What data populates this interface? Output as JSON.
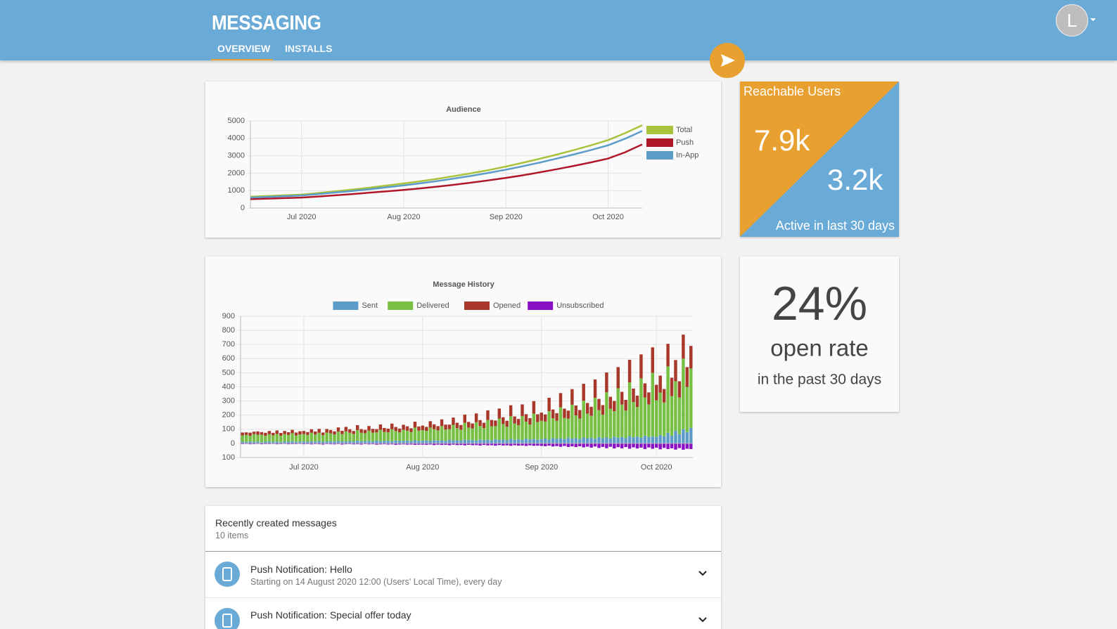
{
  "header": {
    "title": "MESSAGING",
    "tabs": [
      "OVERVIEW",
      "INSTALLS"
    ],
    "avatar": "L"
  },
  "chart_data": [
    {
      "type": "line",
      "title": "Audience",
      "categories": [
        null,
        null,
        null,
        "Jul 2020",
        null,
        null,
        null,
        null,
        null,
        "Aug 2020",
        null,
        null,
        null,
        null,
        null,
        "Sep 2020",
        null,
        null,
        null,
        null,
        null,
        "Oct 2020",
        null,
        null
      ],
      "series": [
        {
          "name": "Total",
          "color": "#a8c33c",
          "values": [
            650,
            690,
            730,
            770,
            860,
            960,
            1060,
            1170,
            1290,
            1410,
            1540,
            1680,
            1840,
            2000,
            2180,
            2380,
            2600,
            2830,
            3070,
            3330,
            3600,
            3900,
            4300,
            4750
          ]
        },
        {
          "name": "Push",
          "color": "#b0182a",
          "values": [
            510,
            540,
            570,
            600,
            660,
            730,
            800,
            880,
            960,
            1040,
            1130,
            1230,
            1340,
            1460,
            1590,
            1730,
            1880,
            2050,
            2230,
            2420,
            2620,
            2840,
            3200,
            3650
          ]
        },
        {
          "name": "In-App",
          "color": "#5d9cc9",
          "values": [
            600,
            640,
            680,
            720,
            800,
            890,
            980,
            1080,
            1190,
            1300,
            1420,
            1550,
            1700,
            1850,
            2020,
            2200,
            2400,
            2610,
            2840,
            3080,
            3330,
            3600,
            3980,
            4420
          ]
        }
      ],
      "ylim": [
        0,
        5000
      ],
      "yticks": [
        0,
        1000,
        2000,
        3000,
        4000,
        5000
      ],
      "grid": true,
      "legend": "right"
    },
    {
      "type": "bar",
      "stacked": true,
      "title": "Message History",
      "categories": [
        null,
        null,
        null,
        null,
        null,
        null,
        null,
        null,
        null,
        null,
        null,
        null,
        null,
        null,
        null,
        null,
        "Jul 2020",
        null,
        null,
        null,
        null,
        null,
        null,
        null,
        null,
        null,
        null,
        null,
        null,
        null,
        null,
        null,
        null,
        null,
        null,
        null,
        null,
        null,
        null,
        null,
        null,
        null,
        null,
        null,
        null,
        null,
        null,
        "Aug 2020",
        null,
        null,
        null,
        null,
        null,
        null,
        null,
        null,
        null,
        null,
        null,
        null,
        null,
        null,
        null,
        null,
        null,
        null,
        null,
        null,
        null,
        null,
        null,
        null,
        null,
        null,
        null,
        null,
        null,
        null,
        "Sep 2020",
        null,
        null,
        null,
        null,
        null,
        null,
        null,
        null,
        null,
        null,
        null,
        null,
        null,
        null,
        null,
        null,
        null,
        null,
        null,
        null,
        null,
        null,
        null,
        null,
        null,
        null,
        null,
        null,
        null,
        "Oct 2020",
        null,
        null,
        null,
        null,
        null,
        null,
        null,
        null,
        null
      ],
      "series": [
        {
          "name": "Sent",
          "color": "#5d9cc9",
          "values": [
            12,
            10,
            14,
            11,
            13,
            9,
            12,
            15,
            11,
            13,
            10,
            14,
            12,
            16,
            11,
            13,
            14,
            12,
            15,
            13,
            17,
            12,
            14,
            16,
            13,
            18,
            14,
            15,
            17,
            13,
            19,
            15,
            16,
            18,
            14,
            20,
            16,
            17,
            19,
            15,
            21,
            17,
            18,
            20,
            16,
            22,
            18,
            19,
            21,
            17,
            23,
            20,
            22,
            18,
            25,
            21,
            23,
            19,
            26,
            22,
            24,
            20,
            28,
            23,
            26,
            21,
            30,
            25,
            27,
            22,
            32,
            26,
            29,
            24,
            34,
            28,
            31,
            26,
            30,
            35,
            28,
            38,
            32,
            36,
            30,
            40,
            34,
            38,
            31,
            42,
            36,
            40,
            33,
            45,
            38,
            42,
            35,
            48,
            40,
            45,
            37,
            52,
            43,
            48,
            40,
            55,
            46,
            50,
            45,
            60,
            50,
            75,
            55,
            90,
            65,
            100,
            80,
            110
          ]
        },
        {
          "name": "Delivered",
          "color": "#77c043",
          "values": [
            45,
            50,
            40,
            55,
            48,
            52,
            42,
            50,
            46,
            54,
            44,
            52,
            48,
            56,
            45,
            50,
            52,
            48,
            60,
            50,
            58,
            46,
            62,
            55,
            50,
            65,
            52,
            70,
            58,
            54,
            75,
            60,
            56,
            72,
            62,
            58,
            80,
            64,
            60,
            85,
            66,
            62,
            78,
            70,
            64,
            90,
            72,
            75,
            68,
            95,
            78,
            72,
            100,
            80,
            76,
            110,
            85,
            78,
            120,
            90,
            82,
            130,
            95,
            86,
            140,
            100,
            92,
            150,
            110,
            96,
            160,
            115,
            100,
            170,
            120,
            105,
            180,
            125,
            130,
            120,
            200,
            140,
            128,
            220,
            150,
            135,
            240,
            160,
            145,
            260,
            175,
            155,
            290,
            190,
            165,
            320,
            210,
            180,
            350,
            230,
            195,
            380,
            250,
            210,
            420,
            270,
            230,
            450,
            260,
            300,
            240,
            470,
            280,
            350,
            260,
            500,
            320,
            420
          ]
        },
        {
          "name": "Opened",
          "color": "#a8392a",
          "values": [
            20,
            18,
            22,
            17,
            24,
            19,
            21,
            23,
            18,
            25,
            20,
            22,
            19,
            24,
            21,
            23,
            22,
            20,
            25,
            21,
            28,
            19,
            26,
            24,
            22,
            30,
            23,
            32,
            25,
            21,
            35,
            26,
            24,
            33,
            27,
            23,
            38,
            28,
            25,
            40,
            29,
            26,
            36,
            31,
            27,
            42,
            30,
            32,
            28,
            45,
            34,
            30,
            48,
            35,
            32,
            52,
            38,
            33,
            58,
            40,
            35,
            62,
            42,
            37,
            68,
            45,
            40,
            72,
            48,
            42,
            78,
            50,
            44,
            82,
            53,
            46,
            88,
            55,
            58,
            50,
            95,
            62,
            54,
            100,
            66,
            57,
            110,
            70,
            60,
            120,
            75,
            64,
            130,
            80,
            68,
            140,
            85,
            72,
            150,
            90,
            76,
            160,
            95,
            80,
            170,
            100,
            85,
            180,
            110,
            120,
            95,
            160,
            130,
            150,
            115,
            170,
            140,
            160
          ]
        },
        {
          "name": "Unsubscribed",
          "color": "#8a10c4",
          "values": [
            -5,
            -4,
            -6,
            -5,
            -4,
            -6,
            -5,
            -5,
            -4,
            -6,
            -5,
            -4,
            -6,
            -5,
            -5,
            -4,
            -6,
            -5,
            -7,
            -5,
            -6,
            -8,
            -5,
            -6,
            -7,
            -5,
            -8,
            -6,
            -5,
            -7,
            -6,
            -8,
            -5,
            -7,
            -6,
            -9,
            -7,
            -6,
            -8,
            -7,
            -10,
            -8,
            -7,
            -9,
            -8,
            -10,
            -9,
            -9,
            -10,
            -8,
            -12,
            -9,
            -11,
            -10,
            -13,
            -9,
            -12,
            -11,
            -14,
            -10,
            -13,
            -12,
            -15,
            -11,
            -14,
            -13,
            -16,
            -12,
            -15,
            -14,
            -17,
            -13,
            -16,
            -15,
            -18,
            -14,
            -17,
            -16,
            -18,
            -20,
            -16,
            -22,
            -19,
            -24,
            -18,
            -25,
            -21,
            -26,
            -20,
            -28,
            -23,
            -30,
            -22,
            -32,
            -25,
            -34,
            -24,
            -36,
            -27,
            -35,
            -26,
            -38,
            -28,
            -36,
            -30,
            -40,
            -29,
            -38,
            -30,
            -42,
            -32,
            -40,
            -35,
            -44,
            -33,
            -45,
            -38,
            -40
          ]
        }
      ],
      "ylim": [
        -100,
        900
      ],
      "yticks": [
        {
          "value": -100,
          "label": "100"
        },
        0,
        100,
        200,
        300,
        400,
        500,
        600,
        700,
        800,
        900
      ],
      "grid": true,
      "legend": "top"
    }
  ],
  "reachable": {
    "title": "Reachable Users",
    "total": "7.9k",
    "active": "3.2k",
    "caption": "Active in last 30 days"
  },
  "open_rate": {
    "value": "24%",
    "label": "open rate",
    "caption": "in the past 30 days"
  },
  "messages": {
    "title": "Recently created messages",
    "count": "10 items",
    "items": [
      {
        "title": "Push Notification: Hello",
        "subtitle": "Starting on 14 August 2020 12:00 (Users' Local Time), every day"
      },
      {
        "title": "Push Notification: Special offer today"
      }
    ]
  }
}
